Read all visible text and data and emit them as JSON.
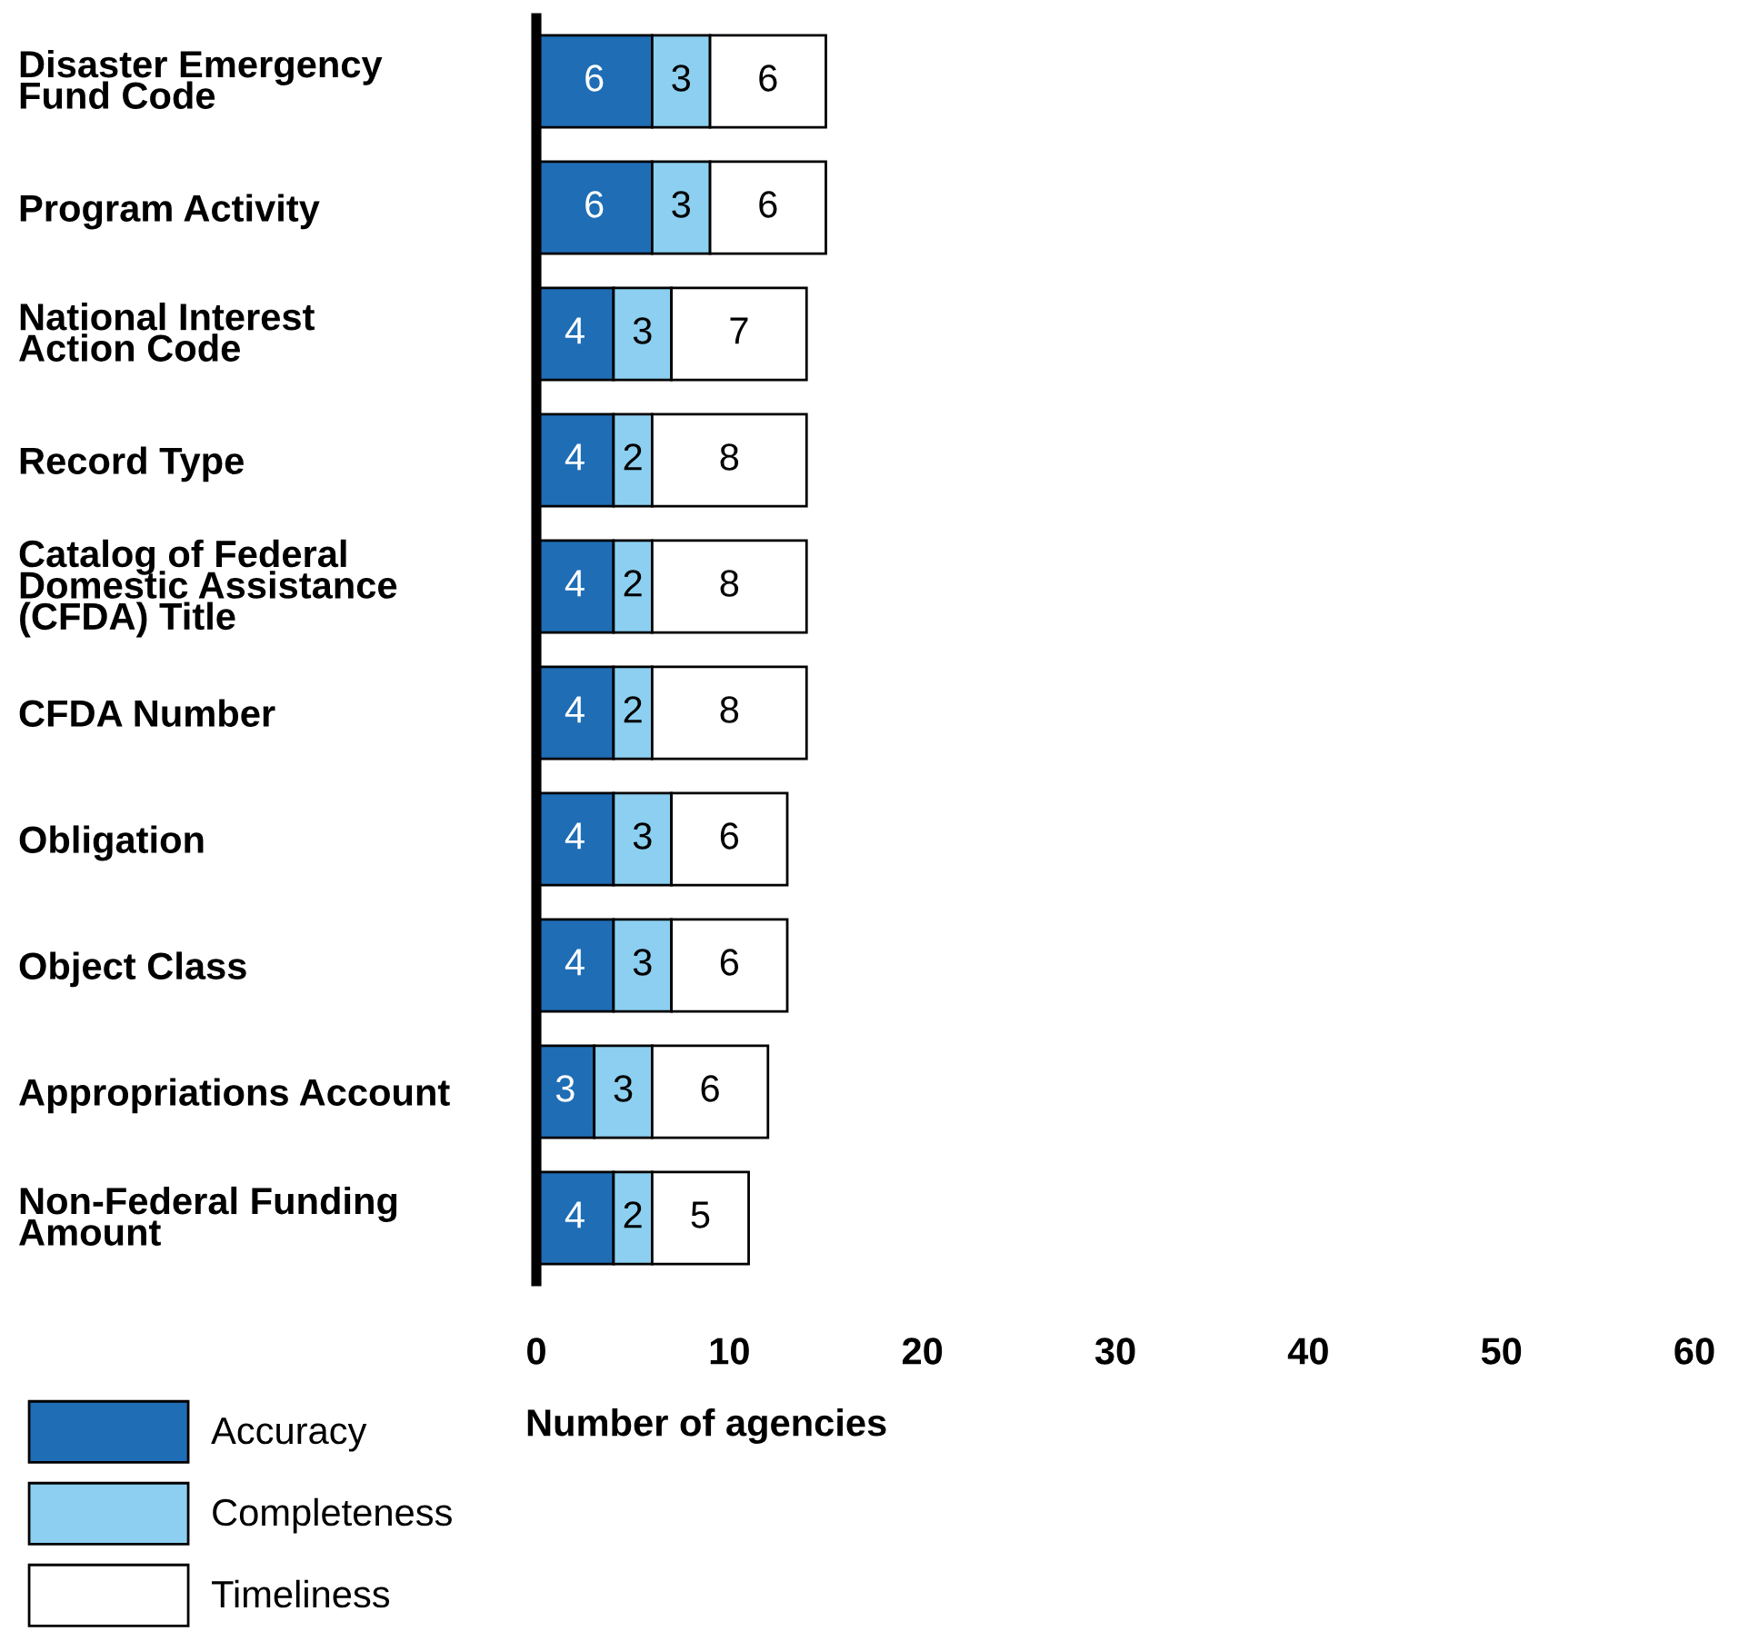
{
  "chart_data": {
    "type": "bar",
    "orientation": "horizontal",
    "stacked": true,
    "xlabel": "Number of agencies",
    "categories": [
      "Disaster Emergency\nFund Code",
      "Program Activity",
      "National Interest\nAction Code",
      "Record Type",
      "Catalog of Federal\nDomestic Assistance\n(CFDA) Title",
      "CFDA Number",
      "Obligation",
      "Object Class",
      "Appropriations Account",
      "Non-Federal Funding\nAmount"
    ],
    "series": [
      {
        "name": "Accuracy",
        "color": "#1f6db5",
        "values": [
          6,
          6,
          4,
          4,
          4,
          4,
          4,
          4,
          3,
          4
        ]
      },
      {
        "name": "Completeness",
        "color": "#8ccff0",
        "values": [
          3,
          3,
          3,
          2,
          2,
          2,
          3,
          3,
          3,
          2
        ]
      },
      {
        "name": "Timeliness",
        "color": "#ffffff",
        "values": [
          6,
          6,
          7,
          8,
          8,
          8,
          6,
          6,
          6,
          5
        ]
      }
    ],
    "xlim": [
      0,
      60
    ],
    "xticks": [
      0,
      10,
      20,
      30,
      40,
      50,
      60
    ],
    "data_labels": true,
    "grid": false,
    "legend": "bottom left"
  }
}
